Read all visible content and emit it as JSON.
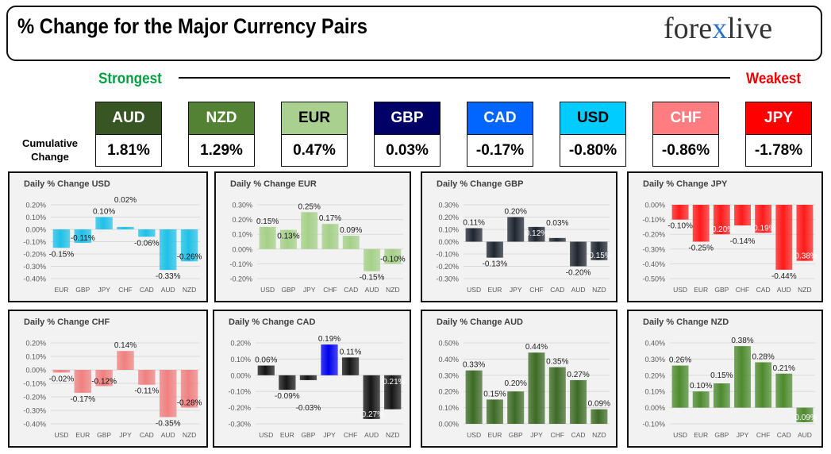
{
  "header": {
    "title": "% Change for the Major Currency Pairs",
    "logo": "forexlive"
  },
  "scale": {
    "strongest": "Strongest",
    "weakest": "Weakest",
    "row_label": "Cumulative Change"
  },
  "cumulative": [
    {
      "currency": "AUD",
      "value": "1.81%",
      "color": "#375623",
      "text": "#ffffff"
    },
    {
      "currency": "NZD",
      "value": "1.29%",
      "color": "#548235",
      "text": "#ffffff"
    },
    {
      "currency": "EUR",
      "value": "0.47%",
      "color": "#a9d08e",
      "text": "#000000"
    },
    {
      "currency": "GBP",
      "value": "0.03%",
      "color": "#000066",
      "text": "#ffffff"
    },
    {
      "currency": "CAD",
      "value": "-0.17%",
      "color": "#0066ff",
      "text": "#ffffff"
    },
    {
      "currency": "USD",
      "value": "-0.80%",
      "color": "#00ccff",
      "text": "#000000"
    },
    {
      "currency": "CHF",
      "value": "-0.86%",
      "color": "#ff7c80",
      "text": "#ffffff"
    },
    {
      "currency": "JPY",
      "value": "-1.78%",
      "color": "#ff0000",
      "text": "#ffffff"
    }
  ],
  "chart_data": [
    {
      "type": "bar",
      "title": "Daily % Change USD",
      "categories": [
        "EUR",
        "GBP",
        "JPY",
        "CHF",
        "CAD",
        "AUD",
        "NZD"
      ],
      "values": [
        -0.15,
        -0.11,
        0.1,
        0.02,
        -0.06,
        -0.33,
        -0.26
      ],
      "ylim": [
        -0.4,
        0.2
      ],
      "color": "#1fc0e8",
      "grid": true
    },
    {
      "type": "bar",
      "title": "Daily % Change EUR",
      "categories": [
        "USD",
        "GBP",
        "JPY",
        "CHF",
        "CAD",
        "AUD",
        "NZD"
      ],
      "values": [
        0.15,
        0.13,
        0.25,
        0.17,
        0.09,
        -0.15,
        -0.1
      ],
      "ylim": [
        -0.2,
        0.3
      ],
      "color": "#a5d088",
      "grid": true
    },
    {
      "type": "bar",
      "title": "Daily % Change GBP",
      "categories": [
        "USD",
        "EUR",
        "JPY",
        "CHF",
        "CAD",
        "AUD",
        "NZD"
      ],
      "values": [
        0.11,
        -0.13,
        0.2,
        0.12,
        0.03,
        -0.2,
        -0.15
      ],
      "ylim": [
        -0.3,
        0.3
      ],
      "color": "#1f2630",
      "grid": true
    },
    {
      "type": "bar",
      "title": "Daily % Change JPY",
      "categories": [
        "USD",
        "EUR",
        "GBP",
        "CHF",
        "CAD",
        "AUD",
        "NZD"
      ],
      "values": [
        -0.1,
        -0.25,
        -0.2,
        -0.14,
        -0.19,
        -0.44,
        -0.38
      ],
      "ylim": [
        -0.5,
        0
      ],
      "color": "#ff1a1a",
      "grid": true
    },
    {
      "type": "bar",
      "title": "Daily % Change CHF",
      "categories": [
        "USD",
        "EUR",
        "GBP",
        "JPY",
        "CAD",
        "AUD",
        "NZD"
      ],
      "values": [
        -0.02,
        -0.17,
        -0.12,
        0.14,
        -0.11,
        -0.35,
        -0.28
      ],
      "ylim": [
        -0.4,
        0.2
      ],
      "color": "#f08080",
      "grid": true
    },
    {
      "type": "bar",
      "title": "Daily % Change CAD",
      "categories": [
        "USD",
        "EUR",
        "GBP",
        "JPY",
        "CHF",
        "AUD",
        "NZD"
      ],
      "values": [
        0.06,
        -0.09,
        -0.03,
        0.19,
        0.11,
        -0.27,
        -0.21
      ],
      "ylim": [
        -0.3,
        0.2
      ],
      "color": "#151515",
      "highlight": {
        "JPY": "#0000ee"
      },
      "grid": true
    },
    {
      "type": "bar",
      "title": "Daily % Change AUD",
      "categories": [
        "USD",
        "EUR",
        "GBP",
        "JPY",
        "CHF",
        "CAD",
        "NZD"
      ],
      "values": [
        0.33,
        0.15,
        0.2,
        0.44,
        0.35,
        0.27,
        0.09
      ],
      "ylim": [
        0,
        0.5
      ],
      "color": "#3d6b25",
      "grid": true
    },
    {
      "type": "bar",
      "title": "Daily % Change NZD",
      "categories": [
        "USD",
        "EUR",
        "GBP",
        "JPY",
        "CHF",
        "CAD",
        "AUD"
      ],
      "values": [
        0.26,
        0.1,
        0.15,
        0.38,
        0.28,
        0.21,
        -0.09
      ],
      "ylim": [
        -0.1,
        0.4
      ],
      "color": "#4d8a2e",
      "grid": true
    }
  ]
}
